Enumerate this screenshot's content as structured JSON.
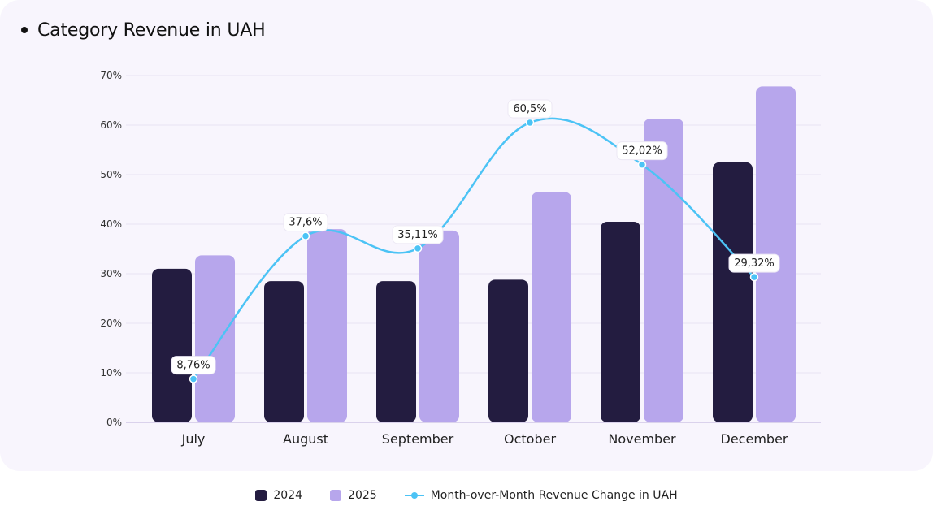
{
  "header": {
    "title": "Category Revenue in UAH"
  },
  "colors": {
    "series_2024": "#231c40",
    "series_2025": "#b7a6ec",
    "line": "#4cc3f5"
  },
  "chart_data": {
    "type": "bar",
    "title": "Category Revenue in UAH",
    "categories": [
      "July",
      "August",
      "September",
      "October",
      "November",
      "December"
    ],
    "ylim": [
      0,
      70
    ],
    "yticks": [
      "0%",
      "10%",
      "20%",
      "30%",
      "40%",
      "50%",
      "60%",
      "70%"
    ],
    "grid": true,
    "legend_position": "bottom-center",
    "series": [
      {
        "name": "2024",
        "type": "bar",
        "values": [
          31,
          28.5,
          28.5,
          28.8,
          40.5,
          52.5
        ]
      },
      {
        "name": "2025",
        "type": "bar",
        "values": [
          33.7,
          39,
          38.7,
          46.5,
          61.3,
          67.8
        ]
      },
      {
        "name": "Month-over-Month Revenue Change in UAH",
        "type": "line",
        "values": [
          8.76,
          37.6,
          35.11,
          60.5,
          52.02,
          29.32
        ],
        "labels": [
          "8,76%",
          "37,6%",
          "35,11%",
          "60,5%",
          "52,02%",
          "29,32%"
        ]
      }
    ]
  }
}
